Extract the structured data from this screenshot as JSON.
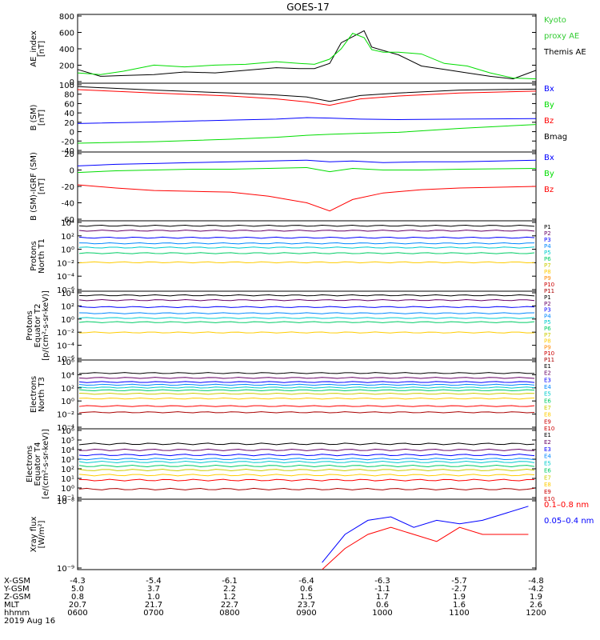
{
  "title": "GOES-17",
  "colors": {
    "black": "#000000",
    "blue": "#0000ff",
    "green": "#00dd00",
    "red": "#ff0000",
    "legend_green": "#33cc33"
  },
  "chart_data": [
    {
      "type": "line",
      "ylabel": [
        "AE_index",
        "[nT]"
      ],
      "yticks": [
        "800",
        "600",
        "400",
        "200",
        "0"
      ],
      "ylim": [
        0,
        800
      ],
      "legend": [
        {
          "text": "Kyoto",
          "color": "#33cc33"
        },
        {
          "text": "proxy AE",
          "color": "#33cc33"
        },
        {
          "text": "Themis AE",
          "color": "#000000"
        }
      ],
      "x": [
        6.0,
        6.3,
        6.6,
        7.0,
        7.4,
        7.8,
        8.2,
        8.6,
        8.9,
        9.1,
        9.3,
        9.45,
        9.6,
        9.75,
        9.85,
        10.0,
        10.2,
        10.5,
        10.8,
        11.1,
        11.4,
        11.7,
        12.0
      ],
      "series": [
        {
          "name": "Themis AE",
          "color": "#000000",
          "values": [
            160,
            80,
            90,
            100,
            130,
            120,
            150,
            180,
            170,
            170,
            230,
            470,
            540,
            610,
            420,
            380,
            330,
            200,
            160,
            120,
            80,
            50,
            150
          ]
        },
        {
          "name": "Kyoto proxy AE",
          "color": "#00dd00",
          "values": [
            120,
            100,
            140,
            210,
            190,
            210,
            220,
            250,
            230,
            220,
            280,
            400,
            580,
            530,
            390,
            360,
            360,
            340,
            230,
            200,
            120,
            60,
            50
          ]
        }
      ]
    },
    {
      "type": "line",
      "ylabel": [
        "B (SM)",
        "[nT]"
      ],
      "yticks": [
        "100",
        "80",
        "60",
        "40",
        "20",
        "0",
        "-20",
        "-40"
      ],
      "ylim": [
        -40,
        100
      ],
      "legend": [
        {
          "text": "Bx",
          "color": "#0000ff"
        },
        {
          "text": "By",
          "color": "#00dd00"
        },
        {
          "text": "Bz",
          "color": "#ff0000"
        },
        {
          "text": "Bmag",
          "color": "#000000"
        }
      ],
      "x": [
        6.0,
        7.0,
        8.0,
        8.6,
        9.0,
        9.3,
        9.7,
        10.2,
        11.0,
        12.0
      ],
      "series": [
        {
          "name": "Bx",
          "color": "#0000ff",
          "values": [
            18,
            21,
            25,
            27,
            30,
            29,
            27,
            26,
            27,
            28
          ]
        },
        {
          "name": "By",
          "color": "#00dd00",
          "values": [
            -22,
            -19,
            -14,
            -10,
            -6,
            -4,
            -2,
            0,
            8,
            16
          ]
        },
        {
          "name": "Bz",
          "color": "#ff0000",
          "values": [
            87,
            80,
            74,
            68,
            62,
            55,
            68,
            74,
            80,
            84
          ]
        },
        {
          "name": "Bmag",
          "color": "#000000",
          "values": [
            93,
            86,
            80,
            76,
            72,
            63,
            75,
            80,
            86,
            88
          ]
        }
      ]
    },
    {
      "type": "line",
      "ylabel": [
        "B (SM)-IGRF (SM)",
        "[nT]"
      ],
      "yticks": [
        "20",
        "0",
        "-20",
        "-40",
        "-60"
      ],
      "ylim": [
        -62,
        22
      ],
      "legend": [
        {
          "text": "Bx",
          "color": "#0000ff"
        },
        {
          "text": "By",
          "color": "#00dd00"
        },
        {
          "text": "Bz",
          "color": "#ff0000"
        }
      ],
      "x": [
        6.0,
        6.5,
        7.0,
        7.5,
        8.0,
        8.5,
        9.0,
        9.3,
        9.6,
        10.0,
        10.5,
        11.0,
        12.0
      ],
      "series": [
        {
          "name": "Bx",
          "color": "#0000ff",
          "values": [
            5,
            7,
            8,
            9,
            10,
            11,
            12,
            10,
            11,
            9,
            10,
            10,
            12
          ]
        },
        {
          "name": "By",
          "color": "#00dd00",
          "values": [
            -3,
            -1,
            0,
            1,
            1,
            2,
            3,
            -2,
            2,
            0,
            0,
            1,
            2
          ]
        },
        {
          "name": "Bz",
          "color": "#ff0000",
          "values": [
            -18,
            -22,
            -25,
            -26,
            -27,
            -32,
            -40,
            -50,
            -36,
            -28,
            -24,
            -22,
            -20
          ]
        }
      ]
    },
    {
      "type": "line",
      "ylabel": [
        "Protons",
        "North T1"
      ],
      "yticks": [
        "10⁴",
        "10²",
        "10⁰",
        "10⁻²",
        "10⁻⁴",
        "10⁻⁶"
      ],
      "ylim": [
        -6,
        4
      ],
      "log": true,
      "legend": [
        {
          "text": "P1",
          "color": "#000000"
        },
        {
          "text": "P2",
          "color": "#660066"
        },
        {
          "text": "P3",
          "color": "#0000ff"
        },
        {
          "text": "P4",
          "color": "#0088ff"
        },
        {
          "text": "P5",
          "color": "#00cccc"
        },
        {
          "text": "P6",
          "color": "#00cc66"
        },
        {
          "text": "P7",
          "color": "#cccc00"
        },
        {
          "text": "P8",
          "color": "#ffcc00"
        },
        {
          "text": "P9",
          "color": "#ff8800"
        },
        {
          "text": "P10",
          "color": "#cc0000"
        },
        {
          "text": "P11",
          "color": "#aa0000"
        }
      ],
      "series": [
        {
          "name": "P1",
          "color": "#000000",
          "values": [
            3.3
          ]
        },
        {
          "name": "P2",
          "color": "#660066",
          "values": [
            2.6
          ]
        },
        {
          "name": "P3",
          "color": "#0000ff",
          "values": [
            1.6
          ]
        },
        {
          "name": "P4",
          "color": "#0088ff",
          "values": [
            0.8
          ]
        },
        {
          "name": "P5",
          "color": "#00cccc",
          "values": [
            0.2
          ]
        },
        {
          "name": "P6",
          "color": "#00cc66",
          "values": [
            -0.6
          ]
        },
        {
          "name": "P7",
          "color": "#ffcc00",
          "values": [
            -1.9
          ]
        }
      ]
    },
    {
      "type": "line",
      "ylabel": [
        "Protons",
        "Equator T2",
        "[p/(cm²-s-sr-keV)]"
      ],
      "yticks": [
        "10⁴",
        "10²",
        "10⁰",
        "10⁻²",
        "10⁻⁴",
        "10⁻⁶"
      ],
      "ylim": [
        -6,
        4
      ],
      "log": true,
      "legend": [
        {
          "text": "P1",
          "color": "#000000"
        },
        {
          "text": "P2",
          "color": "#660066"
        },
        {
          "text": "P3",
          "color": "#0000ff"
        },
        {
          "text": "P4",
          "color": "#0088ff"
        },
        {
          "text": "P5",
          "color": "#00cccc"
        },
        {
          "text": "P6",
          "color": "#00cc66"
        },
        {
          "text": "P7",
          "color": "#cccc00"
        },
        {
          "text": "P8",
          "color": "#ffcc00"
        },
        {
          "text": "P9",
          "color": "#ff8800"
        },
        {
          "text": "P10",
          "color": "#cc0000"
        },
        {
          "text": "P11",
          "color": "#aa0000"
        }
      ],
      "series": [
        {
          "name": "P1",
          "color": "#000000",
          "values": [
            3.4
          ]
        },
        {
          "name": "P2",
          "color": "#660066",
          "values": [
            2.7
          ]
        },
        {
          "name": "P3",
          "color": "#0000ff",
          "values": [
            1.7
          ]
        },
        {
          "name": "P4",
          "color": "#0088ff",
          "values": [
            0.8
          ]
        },
        {
          "name": "P5",
          "color": "#00cccc",
          "values": [
            0.1
          ]
        },
        {
          "name": "P6",
          "color": "#00cc66",
          "values": [
            -0.5
          ]
        },
        {
          "name": "P7",
          "color": "#ffcc00",
          "values": [
            -2.0
          ]
        }
      ]
    },
    {
      "type": "line",
      "ylabel": [
        "Electrons",
        "North T3"
      ],
      "yticks": [
        "10⁶",
        "10⁴",
        "10²",
        "10⁰",
        "10⁻²",
        "10⁻⁴"
      ],
      "ylim": [
        -4,
        6
      ],
      "log": true,
      "legend": [
        {
          "text": "E1",
          "color": "#000000"
        },
        {
          "text": "E2",
          "color": "#660066"
        },
        {
          "text": "E3",
          "color": "#0000ff"
        },
        {
          "text": "E4",
          "color": "#0088ff"
        },
        {
          "text": "E5",
          "color": "#00cccc"
        },
        {
          "text": "E6",
          "color": "#00cc66"
        },
        {
          "text": "E7",
          "color": "#cccc00"
        },
        {
          "text": "E8",
          "color": "#ffcc00"
        },
        {
          "text": "E9",
          "color": "#cc0000"
        },
        {
          "text": "E10",
          "color": "#cc0000"
        }
      ],
      "series": [
        {
          "name": "E1",
          "color": "#000000",
          "values": [
            4.1
          ]
        },
        {
          "name": "E2",
          "color": "#660066",
          "values": [
            3.4
          ]
        },
        {
          "name": "E3",
          "color": "#0000ff",
          "values": [
            2.8
          ]
        },
        {
          "name": "E4",
          "color": "#0088ff",
          "values": [
            2.4
          ]
        },
        {
          "name": "E5",
          "color": "#00cccc",
          "values": [
            2.0
          ]
        },
        {
          "name": "E6",
          "color": "#00cc66",
          "values": [
            1.6
          ]
        },
        {
          "name": "E7",
          "color": "#cccc00",
          "values": [
            1.1
          ]
        },
        {
          "name": "E8",
          "color": "#ffcc00",
          "values": [
            0.4
          ]
        },
        {
          "name": "E9",
          "color": "#ff0000",
          "values": [
            -0.7
          ]
        },
        {
          "name": "E10",
          "color": "#aa0000",
          "values": [
            -1.6
          ]
        }
      ]
    },
    {
      "type": "line",
      "ylabel": [
        "Electrons",
        "Equator T4",
        "[e/(cm²-s-sr-keV)]"
      ],
      "yticks": [
        "10⁶",
        "10⁵",
        "10⁴",
        "10³",
        "10²",
        "10¹",
        "10⁰",
        "10⁻¹"
      ],
      "ylim": [
        -1,
        6
      ],
      "log": true,
      "legend": [
        {
          "text": "E1",
          "color": "#000000"
        },
        {
          "text": "E2",
          "color": "#660066"
        },
        {
          "text": "E3",
          "color": "#0000ff"
        },
        {
          "text": "E4",
          "color": "#0088ff"
        },
        {
          "text": "E5",
          "color": "#00cccc"
        },
        {
          "text": "E6",
          "color": "#00cc66"
        },
        {
          "text": "E7",
          "color": "#cccc00"
        },
        {
          "text": "E8",
          "color": "#ffcc00"
        },
        {
          "text": "E9",
          "color": "#cc0000"
        },
        {
          "text": "E10",
          "color": "#cc0000"
        }
      ],
      "series": [
        {
          "name": "E1",
          "color": "#000000",
          "values": [
            4.5
          ]
        },
        {
          "name": "E2",
          "color": "#660066",
          "values": [
            3.9
          ]
        },
        {
          "name": "E3",
          "color": "#0000ff",
          "values": [
            3.4
          ]
        },
        {
          "name": "E4",
          "color": "#0088ff",
          "values": [
            3.0
          ]
        },
        {
          "name": "E5",
          "color": "#00cccc",
          "values": [
            2.7
          ]
        },
        {
          "name": "E6",
          "color": "#00cc66",
          "values": [
            2.3
          ]
        },
        {
          "name": "E7",
          "color": "#cccc00",
          "values": [
            1.9
          ]
        },
        {
          "name": "E8",
          "color": "#ffcc00",
          "values": [
            1.4
          ]
        },
        {
          "name": "E9",
          "color": "#ff0000",
          "values": [
            0.9
          ]
        },
        {
          "name": "E10",
          "color": "#aa0000",
          "values": [
            0.0
          ]
        }
      ]
    },
    {
      "type": "line",
      "ylabel": [
        "Xray flux",
        "[W/m²]"
      ],
      "yticks": [
        "10⁻⁸",
        "10⁻⁹"
      ],
      "ylim": [
        -9,
        -8
      ],
      "log": true,
      "legend": [
        {
          "text": "0.1–0.8 nm",
          "color": "#ff0000"
        },
        {
          "text": "0.05–0.4 nm",
          "color": "#0000ff"
        }
      ],
      "x": [
        9.2,
        9.5,
        9.8,
        10.1,
        10.4,
        10.7,
        11.0,
        11.3,
        11.6,
        11.9
      ],
      "series": [
        {
          "name": "0.1–0.8 nm",
          "color": "#ff0000",
          "values": [
            -9.0,
            -8.7,
            -8.5,
            -8.4,
            -8.5,
            -8.6,
            -8.4,
            -8.5,
            -8.5,
            -8.5
          ]
        },
        {
          "name": "0.05–0.4 nm",
          "color": "#0000ff",
          "values": [
            -8.9,
            -8.5,
            -8.3,
            -8.25,
            -8.4,
            -8.3,
            -8.35,
            -8.3,
            -8.2,
            -8.1
          ]
        }
      ]
    }
  ],
  "ephemeris": {
    "rows": [
      {
        "label": "X-GSM",
        "values": [
          "-4.3",
          "-5.4",
          "-6.1",
          "-6.4",
          "-6.3",
          "-5.7",
          "-4.8"
        ]
      },
      {
        "label": "Y-GSM",
        "values": [
          "5.0",
          "3.7",
          "2.2",
          "0.6",
          "-1.1",
          "-2.7",
          "-4.2"
        ]
      },
      {
        "label": "Z-GSM",
        "values": [
          "0.8",
          "1.0",
          "1.2",
          "1.5",
          "1.7",
          "1.9",
          "1.9"
        ]
      },
      {
        "label": "MLT",
        "values": [
          "20.7",
          "21.7",
          "22.7",
          "23.7",
          "0.6",
          "1.6",
          "2.6"
        ]
      },
      {
        "label": "hhmm",
        "values": [
          "0600",
          "0700",
          "0800",
          "0900",
          "1000",
          "1100",
          "1200"
        ]
      }
    ],
    "date": "2019 Aug 16"
  }
}
